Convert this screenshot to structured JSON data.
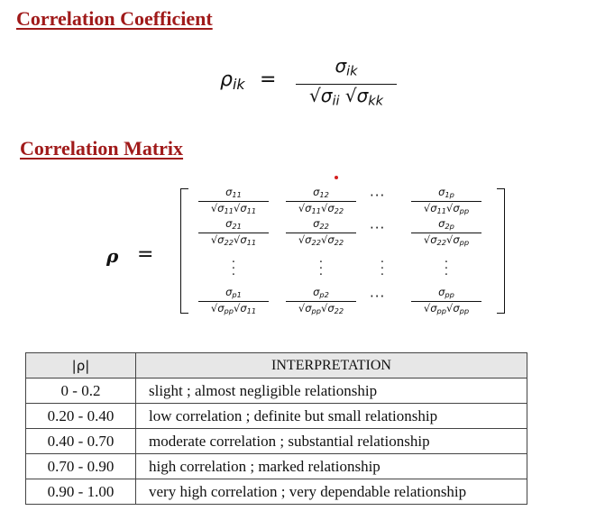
{
  "heading_coefficient": "Correlation Coefficient",
  "heading_matrix": "Correlation Matrix",
  "table": {
    "headers": [
      "|ρ|",
      "INTERPRETATION"
    ],
    "rows": [
      {
        "range": "0  - 0.2",
        "interpretation": "slight ; almost negligible relationship"
      },
      {
        "range": "0.20 - 0.40",
        "interpretation": "low correlation ; definite but small relationship"
      },
      {
        "range": "0.40 - 0.70",
        "interpretation": "moderate correlation ; substantial relationship"
      },
      {
        "range": "0.70 - 0.90",
        "interpretation": "high correlation ; marked relationship"
      },
      {
        "range": "0.90 - 1.00",
        "interpretation": "very high correlation ; very dependable relationship"
      }
    ]
  }
}
